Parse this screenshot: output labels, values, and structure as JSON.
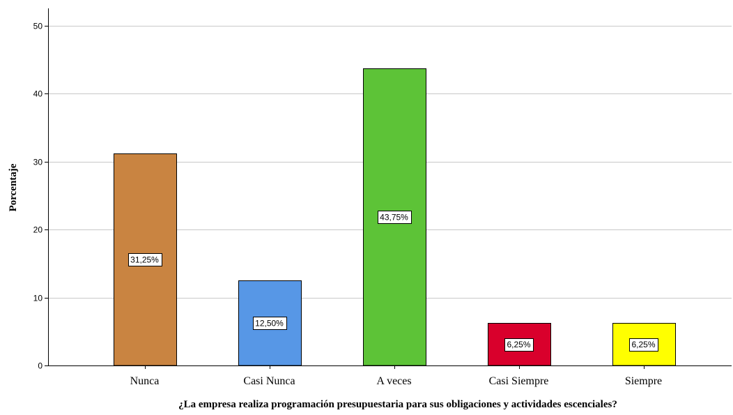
{
  "chart_data": {
    "type": "bar",
    "categories": [
      "Nunca",
      "Casi Nunca",
      "A veces",
      "Casi Siempre",
      "Siempre"
    ],
    "values": [
      31.25,
      12.5,
      43.75,
      6.25,
      6.25
    ],
    "data_labels": [
      "31,25%",
      "12,50%",
      "43,75%",
      "6,25%",
      "6,25%"
    ],
    "colors": [
      "#c98441",
      "#5797e6",
      "#5dc337",
      "#d9002c",
      "#ffff00"
    ],
    "title": "",
    "xlabel": "¿La empresa realiza programación presupuestaria para sus obligaciones y actividades escenciales?",
    "ylabel": "Porcentaje",
    "ylim": [
      0,
      52
    ],
    "yticks": [
      0,
      10,
      20,
      30,
      40,
      50
    ],
    "grid": true,
    "legend": "none"
  }
}
